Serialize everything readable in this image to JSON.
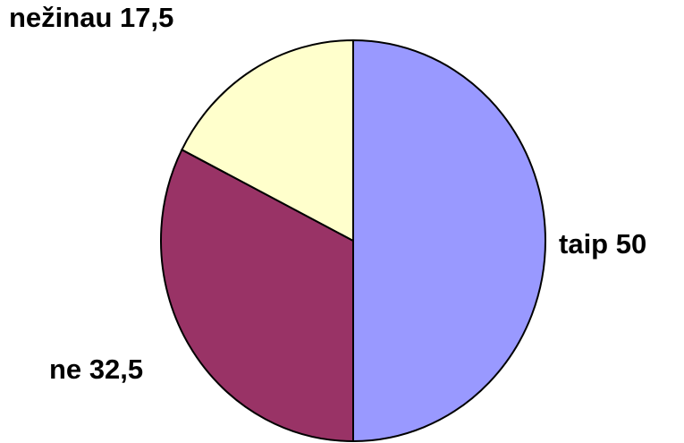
{
  "chart_data": {
    "type": "pie",
    "categories": [
      "taip",
      "ne",
      "nežinau"
    ],
    "values": [
      50,
      32.5,
      17.5
    ],
    "value_labels": [
      "50",
      "32,5",
      "17,5"
    ],
    "colors": [
      "#9999ff",
      "#993366",
      "#ffffcc"
    ]
  }
}
